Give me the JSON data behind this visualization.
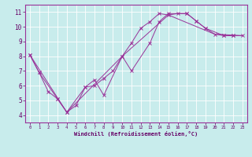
{
  "xlabel": "Windchill (Refroidissement éolien,°C)",
  "background_color": "#c8ecec",
  "line_color": "#993399",
  "grid_color": "#ffffff",
  "xlim": [
    -0.5,
    23.5
  ],
  "ylim": [
    3.5,
    11.5
  ],
  "xticks": [
    0,
    1,
    2,
    3,
    4,
    5,
    6,
    7,
    8,
    9,
    10,
    11,
    12,
    13,
    14,
    15,
    16,
    17,
    18,
    19,
    20,
    21,
    22,
    23
  ],
  "yticks": [
    4,
    5,
    6,
    7,
    8,
    9,
    10,
    11
  ],
  "line1_x": [
    0,
    1,
    2,
    3,
    4,
    5,
    6,
    7,
    8,
    9,
    10,
    11,
    12,
    13,
    14,
    15,
    16,
    17,
    18,
    19,
    20,
    21,
    22
  ],
  "line1_y": [
    8.1,
    6.9,
    5.6,
    5.1,
    4.2,
    4.65,
    5.9,
    6.0,
    6.5,
    7.0,
    8.0,
    8.9,
    9.9,
    10.35,
    10.9,
    10.8,
    10.9,
    10.9,
    10.4,
    9.9,
    9.5,
    9.4,
    9.4
  ],
  "line2_x": [
    0,
    1,
    3,
    4,
    6,
    7,
    8,
    10,
    11,
    13,
    14,
    15,
    17,
    18,
    19,
    21,
    22,
    23
  ],
  "line2_y": [
    8.1,
    6.9,
    5.1,
    4.2,
    5.9,
    6.4,
    5.35,
    8.0,
    7.0,
    8.9,
    10.35,
    10.9,
    10.9,
    10.4,
    9.9,
    9.4,
    9.4,
    9.4
  ],
  "line3_x": [
    0,
    4,
    10,
    15,
    20,
    23
  ],
  "line3_y": [
    8.1,
    4.2,
    8.0,
    10.8,
    9.5,
    9.4
  ]
}
